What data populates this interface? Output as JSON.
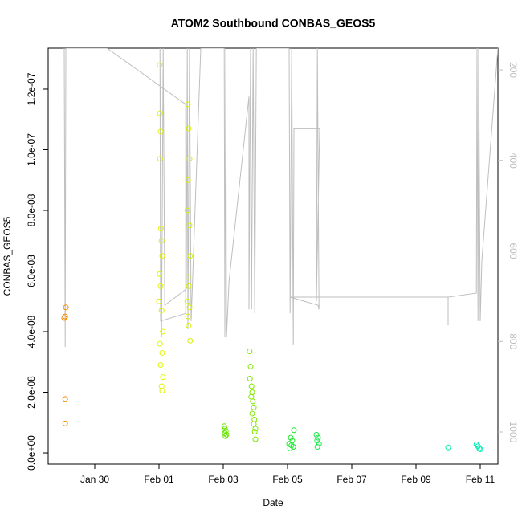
{
  "chart_data": {
    "type": "scatter",
    "title": "ATOM2 Southbound CONBAS_GEOS5",
    "xlabel": "Date",
    "ylabel": "CONBAS_GEOS5",
    "xlim": [
      28.55,
      42.55
    ],
    "xticks": [
      {
        "value": 30,
        "label": "Jan 30"
      },
      {
        "value": 32,
        "label": "Feb 01"
      },
      {
        "value": 34,
        "label": "Feb 03"
      },
      {
        "value": 36,
        "label": "Feb 05"
      },
      {
        "value": 38,
        "label": "Feb 07"
      },
      {
        "value": 40,
        "label": "Feb 09"
      },
      {
        "value": 42,
        "label": "Feb 11"
      }
    ],
    "ylim": [
      -3.7e-09,
      1.335e-07
    ],
    "yticks": [
      {
        "value": 0,
        "label": "0.0e+00"
      },
      {
        "value": 2e-08,
        "label": "2.0e-08"
      },
      {
        "value": 4e-08,
        "label": "4.0e-08"
      },
      {
        "value": 6e-08,
        "label": "6.0e-08"
      },
      {
        "value": 8e-08,
        "label": "8.0e-08"
      },
      {
        "value": 1e-07,
        "label": "1.0e-07"
      },
      {
        "value": 1.2e-07,
        "label": "1.2e-07"
      }
    ],
    "y2lim": [
      1071,
      152
    ],
    "y2ticks": [
      200,
      400,
      600,
      800,
      1000
    ],
    "series": [
      {
        "color": "#f08c00",
        "x": [
          29.05,
          29.08,
          29.1,
          29.08,
          29.08
        ],
        "values": [
          4.45e-08,
          4.5e-08,
          4.8e-08,
          1.78e-08,
          9.7e-09
        ]
      },
      {
        "color": "#e2f500",
        "x": [
          32.02,
          32.03,
          32.05,
          32.03,
          32.06,
          32.08,
          32.1,
          32.02,
          32.05,
          32.0,
          32.08,
          32.12,
          32.03,
          32.1,
          32.05,
          32.12,
          32.08,
          32.1
        ],
        "values": [
          1.28e-07,
          1.12e-07,
          1.06e-07,
          9.7e-08,
          7.4e-08,
          7e-08,
          6.5e-08,
          5.9e-08,
          5.5e-08,
          5e-08,
          4.7e-08,
          4e-08,
          3.6e-08,
          3.3e-08,
          2.9e-08,
          2.5e-08,
          2.2e-08,
          2.05e-08
        ]
      },
      {
        "color": "#d6f200",
        "x": [
          32.9,
          32.92,
          32.95,
          32.9,
          32.88,
          32.95,
          32.97,
          32.9,
          32.93,
          32.88,
          32.95,
          32.9,
          32.92,
          32.97
        ],
        "values": [
          1.15e-07,
          1.07e-07,
          9.7e-08,
          9e-08,
          8e-08,
          7.5e-08,
          6.5e-08,
          5.8e-08,
          5.5e-08,
          5e-08,
          4.8e-08,
          4.5e-08,
          4.2e-08,
          3.7e-08
        ]
      },
      {
        "color": "#66e600",
        "x": [
          34.03,
          34.05,
          34.08,
          34.05,
          34.1,
          34.07
        ],
        "values": [
          8.8e-09,
          8e-09,
          7.2e-09,
          6.5e-09,
          6e-09,
          5.5e-09
        ]
      },
      {
        "color": "#80e800",
        "x": [
          34.82,
          34.85,
          34.83,
          34.88,
          34.9,
          34.87,
          34.92,
          34.95,
          34.9,
          34.97,
          34.95,
          35.0,
          34.98,
          35.0
        ],
        "values": [
          3.35e-08,
          2.85e-08,
          2.45e-08,
          2.2e-08,
          2e-08,
          1.85e-08,
          1.7e-08,
          1.5e-08,
          1.3e-08,
          1.1e-08,
          9.5e-09,
          8e-09,
          7e-09,
          4.5e-09
        ]
      },
      {
        "color": "#1ee830",
        "x": [
          36.2,
          36.1,
          36.15,
          36.05,
          36.12,
          36.18,
          36.08
        ],
        "values": [
          7.5e-09,
          5e-09,
          4e-09,
          3e-09,
          2.5e-09,
          2e-09,
          1.5e-09
        ]
      },
      {
        "color": "#19e84a",
        "x": [
          36.9,
          36.95,
          36.92,
          36.98,
          36.93
        ],
        "values": [
          6e-09,
          5e-09,
          4e-09,
          3e-09,
          2e-09
        ]
      },
      {
        "color": "#00f0b0",
        "x": [
          41.0,
          41.88,
          41.93,
          41.97,
          42.0
        ],
        "values": [
          1.8e-09,
          2.8e-09,
          2.2e-09,
          1.5e-09,
          1.2e-09
        ]
      },
      {
        "type": "line",
        "axis": "y2",
        "color": "#bebebe",
        "x": [
          29.05,
          29.08,
          29.1,
          30.38,
          32.83,
          32.83,
          32.05,
          32.03,
          32.08,
          32.13,
          32.18,
          32.85,
          32.88,
          32.9,
          32.95,
          33.0,
          33.3,
          34.03,
          34.05,
          34.08,
          34.1,
          34.18,
          34.8,
          34.8,
          34.85,
          34.88,
          34.93,
          34.98,
          35.03,
          36.05,
          36.08,
          36.13,
          36.18,
          36.2,
          37.0,
          36.9,
          36.93,
          36.98,
          36.95,
          36.08,
          41.0,
          41.0,
          41.0,
          41.88,
          41.9,
          41.93,
          41.95,
          42.0,
          42.05,
          42.55
        ],
        "values": [
          152,
          812,
          152,
          152,
          276,
          738,
          755,
          152,
          791,
          152,
          720,
          684,
          152,
          773,
          152,
          755,
          152,
          152,
          791,
          152,
          791,
          667,
          259,
          729,
          152,
          729,
          152,
          738,
          152,
          152,
          738,
          152,
          808,
          330,
          330,
          711,
          152,
          729,
          720,
          702,
          702,
          764,
          702,
          693,
          152,
          755,
          152,
          755,
          622,
          152
        ]
      }
    ]
  }
}
